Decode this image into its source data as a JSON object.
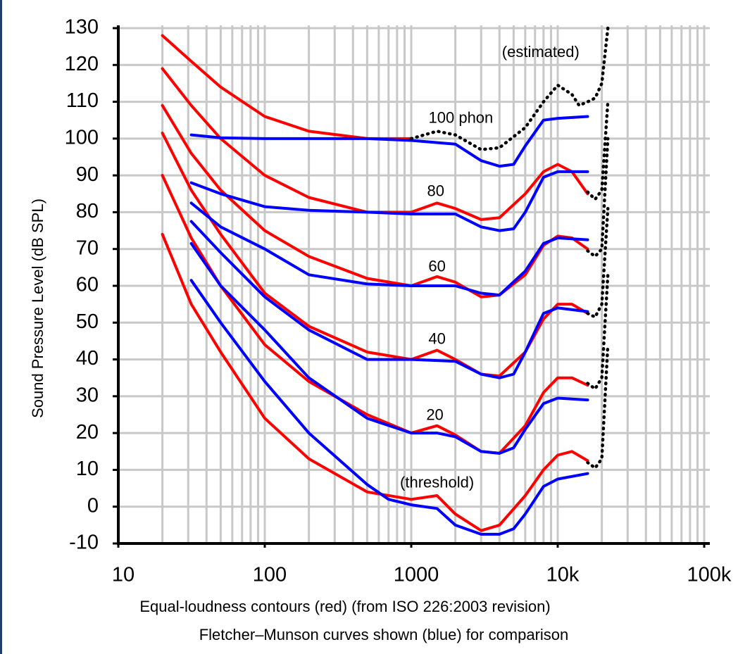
{
  "chart_data": {
    "type": "line",
    "ylabel": "Sound Pressure Level (dB SPL)",
    "caption": [
      "Equal-loudness contours (red) (from ISO 226:2003 revision)",
      "Fletcher–Munson curves shown (blue) for comparison"
    ],
    "log_x": true,
    "grid": true,
    "xlim": [
      10,
      100000
    ],
    "ylim": [
      -10,
      130
    ],
    "xticks": [
      10,
      100,
      1000,
      {
        "value": 10000,
        "label": "10k"
      },
      {
        "value": 100000,
        "label": "100k"
      }
    ],
    "xminorticks": [
      20,
      30,
      40,
      50,
      60,
      70,
      80,
      90,
      200,
      300,
      400,
      500,
      600,
      700,
      800,
      900,
      2000,
      3000,
      4000,
      5000,
      6000,
      7000,
      8000,
      9000,
      20000,
      30000,
      40000,
      50000,
      60000,
      70000,
      80000,
      90000
    ],
    "yticks": [
      -10,
      0,
      10,
      20,
      30,
      40,
      50,
      60,
      70,
      80,
      90,
      100,
      110,
      120,
      130
    ],
    "annotations": [
      {
        "text": "(estimated)",
        "x": 7650,
        "y": 123.3
      },
      {
        "text": "100 phon",
        "x": 2180,
        "y": 105.4
      },
      {
        "text": "80",
        "x": 1470,
        "y": 85.5
      },
      {
        "text": "60",
        "x": 1500,
        "y": 65
      },
      {
        "text": "40",
        "x": 1500,
        "y": 45.3
      },
      {
        "text": "20",
        "x": 1450,
        "y": 24.7
      },
      {
        "text": "(threshold)",
        "x": 1500,
        "y": 6.3
      }
    ],
    "series": [
      {
        "color": "#ff0000",
        "style": "solid",
        "x": [
          20,
          31.5,
          50,
          100,
          200,
          500,
          1000,
          1500,
          2000,
          3000,
          4000,
          6000,
          8000,
          10000,
          12500,
          16000
        ],
        "values": [
          74,
          55,
          42,
          24,
          13,
          4,
          2,
          3,
          -2,
          -6.5,
          -5,
          3,
          10,
          14,
          15,
          12.5
        ]
      },
      {
        "color": "#ff0000",
        "style": "solid",
        "x": [
          20,
          31.5,
          50,
          100,
          200,
          500,
          1000,
          1500,
          2000,
          3000,
          4000,
          6000,
          8000,
          10000,
          12500,
          16000
        ],
        "values": [
          90,
          73,
          60,
          44,
          34,
          25,
          20,
          22,
          19.5,
          15,
          14.5,
          22,
          31,
          35,
          35,
          33
        ]
      },
      {
        "color": "#ff0000",
        "style": "solid",
        "x": [
          20,
          31.5,
          50,
          100,
          200,
          500,
          1000,
          1500,
          2000,
          3000,
          4000,
          6000,
          8000,
          10000,
          12500,
          16000
        ],
        "values": [
          101.5,
          86,
          74,
          58,
          49,
          42,
          40,
          42.5,
          40,
          36,
          35.5,
          42,
          51,
          55,
          55,
          52.5
        ]
      },
      {
        "color": "#ff0000",
        "style": "solid",
        "x": [
          20,
          31.5,
          50,
          100,
          200,
          500,
          1000,
          1500,
          2000,
          3000,
          4000,
          6000,
          8000,
          10000,
          12500,
          16000
        ],
        "values": [
          109,
          96,
          86,
          75,
          68,
          62,
          60,
          62.5,
          61,
          57,
          57.5,
          63,
          71,
          73.5,
          73,
          70
        ]
      },
      {
        "color": "#ff0000",
        "style": "solid",
        "x": [
          20,
          31.5,
          50,
          100,
          200,
          500,
          1000,
          1500,
          2000,
          3000,
          4000,
          6000,
          8000,
          10000,
          12500,
          16000
        ],
        "values": [
          119,
          109,
          100,
          90,
          84,
          80,
          80,
          82.5,
          81,
          78,
          78.5,
          85,
          91,
          93,
          91,
          85
        ]
      },
      {
        "color": "#ff0000",
        "style": "solid",
        "x": [
          20,
          31.5,
          50,
          100,
          200,
          500,
          1000
        ],
        "values": [
          128,
          121,
          114,
          106,
          102,
          100,
          100
        ]
      },
      {
        "color": "#0000ff",
        "style": "solid",
        "x": [
          31.5,
          50,
          100,
          200,
          500,
          700,
          1000,
          1500,
          2000,
          3000,
          4000,
          5000,
          6000,
          8000,
          10000,
          16000
        ],
        "values": [
          61.5,
          50,
          34,
          20,
          6,
          2,
          0.5,
          -0.5,
          -5,
          -7.5,
          -7.5,
          -6,
          -2,
          5.5,
          7.5,
          9
        ]
      },
      {
        "color": "#0000ff",
        "style": "solid",
        "x": [
          31.5,
          50,
          100,
          200,
          500,
          1000,
          1500,
          2000,
          3000,
          4000,
          5000,
          6000,
          8000,
          10000,
          16000
        ],
        "values": [
          71.5,
          60,
          48,
          35,
          24,
          20,
          20,
          19,
          15,
          14.5,
          16,
          21,
          28,
          29.5,
          29
        ]
      },
      {
        "color": "#0000ff",
        "style": "solid",
        "x": [
          31.5,
          50,
          100,
          200,
          500,
          1000,
          2000,
          3000,
          4000,
          5000,
          6000,
          8000,
          10000,
          16000
        ],
        "values": [
          77.5,
          69,
          57,
          48,
          40,
          40,
          39.5,
          36,
          35,
          36,
          42,
          52.5,
          54,
          53
        ]
      },
      {
        "color": "#0000ff",
        "style": "solid",
        "x": [
          31.5,
          50,
          100,
          200,
          500,
          1000,
          1500,
          2000,
          3000,
          4000,
          6000,
          8000,
          10000,
          16000
        ],
        "values": [
          82.5,
          76,
          70,
          63,
          60.5,
          60,
          60,
          60,
          58,
          57.5,
          64,
          71.5,
          73,
          72.5
        ]
      },
      {
        "color": "#0000ff",
        "style": "solid",
        "x": [
          31.5,
          50,
          100,
          200,
          500,
          1000,
          2000,
          3000,
          4000,
          5000,
          6000,
          8000,
          10000,
          16000
        ],
        "values": [
          88,
          85,
          81.5,
          80.5,
          80,
          79.5,
          79.5,
          76,
          75,
          75.5,
          80,
          89.5,
          91,
          91
        ]
      },
      {
        "color": "#0000ff",
        "style": "solid",
        "x": [
          31.5,
          50,
          100,
          200,
          500,
          1000,
          2000,
          3000,
          4000,
          5000,
          6000,
          8000,
          10000,
          16000
        ],
        "values": [
          101,
          100.2,
          100,
          100,
          100,
          99.5,
          98.5,
          94,
          92.5,
          93,
          98,
          105,
          105.5,
          106
        ]
      },
      {
        "color": "#000000",
        "style": "dotted",
        "x": [
          1000,
          1500,
          2000,
          3000,
          4000,
          6000,
          8000,
          10000,
          12500,
          14000,
          16000,
          18000,
          20000,
          22000
        ],
        "values": [
          100,
          102,
          101,
          97,
          97.5,
          103,
          110,
          114.5,
          112,
          109,
          110,
          111,
          115,
          130
        ]
      },
      {
        "color": "#000000",
        "style": "dotted",
        "x": [
          16000,
          18000,
          20000,
          22000
        ],
        "values": [
          85.5,
          83.5,
          86,
          110
        ]
      },
      {
        "color": "#000000",
        "style": "dotted",
        "x": [
          16000,
          18000,
          20000,
          22000
        ],
        "values": [
          69.5,
          68,
          70,
          100
        ]
      },
      {
        "color": "#000000",
        "style": "dotted",
        "x": [
          16000,
          18000,
          20000,
          22000
        ],
        "values": [
          52.5,
          51.5,
          55,
          81
        ]
      },
      {
        "color": "#000000",
        "style": "dotted",
        "x": [
          16000,
          18000,
          20000,
          22000
        ],
        "values": [
          33.5,
          32,
          35,
          63
        ]
      },
      {
        "color": "#000000",
        "style": "dotted",
        "x": [
          16000,
          18000,
          20000,
          22000
        ],
        "values": [
          12,
          10.5,
          13,
          44
        ]
      }
    ]
  }
}
